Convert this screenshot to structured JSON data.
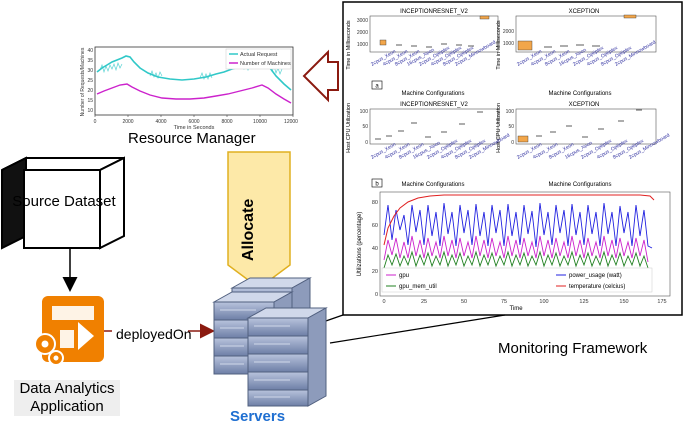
{
  "labels": {
    "resource_manager": "Resource Manager",
    "monitoring_framework": "Monitoring Framework",
    "servers": "Servers",
    "source_dataset": "Source Dataset",
    "data_analytics_application": "Data Analytics Application",
    "deployed_on": "deployedOn",
    "allocate": "Allocate"
  },
  "resource_plot": {
    "ylabel": "Number of Requests/Machines",
    "xlabel": "Time in Seconds",
    "legend": [
      "Actual Request",
      "Number of Machines"
    ],
    "yticks": [
      "10",
      "15",
      "20",
      "25",
      "30",
      "35",
      "40"
    ],
    "xticks": [
      "0",
      "2000",
      "4000",
      "6000",
      "8000",
      "10000",
      "12000"
    ]
  },
  "monitor_panels": {
    "time_top_left_title": "INCEPTIONRESNET_V2",
    "time_top_right_title": "XCEPTION",
    "time_ylabel": "Time in Milliseconds",
    "time_left_yticks": [
      "1000",
      "2000",
      "3000"
    ],
    "time_right_yticks": [
      "1000",
      "2000"
    ],
    "cpu_left_title": "INCEPTIONRESNET_V2",
    "cpu_right_title": "XCEPTION",
    "cpu_ylabel": "Host CPU Utilization",
    "cpu_yticks": [
      "0",
      "50",
      "100"
    ],
    "xlabel": "Machine Configurations",
    "machine_configs": [
      "2cpus_Xeon",
      "4cpus_Xeon",
      "8cpus_Xeon",
      "16cpus_Xeon",
      "2cpus_Optiplex",
      "4cpus_Optiplex",
      "8cpus_Optiplex",
      "2cpus_Minnowboard"
    ],
    "panel_a": "a",
    "panel_b": "b"
  },
  "gpu_plot": {
    "ylabel": "Utilizations (percentage)",
    "xlabel": "Time",
    "yticks": [
      "0",
      "20",
      "40",
      "60",
      "80"
    ],
    "xticks": [
      "0",
      "25",
      "50",
      "75",
      "100",
      "125",
      "150",
      "175"
    ],
    "legend": [
      "gpu",
      "gpu_mem_util",
      "power_usage (watt)",
      "temperature (celcius)"
    ]
  },
  "colors": {
    "accent_blue": "#1f6fd1",
    "arrow_red": "#8b1a10",
    "allocate_fill": "#fde9a8",
    "allocate_stroke": "#e0b020",
    "cyan": "#30c8c8",
    "magenta": "#cc22cc",
    "orange": "#f08000"
  }
}
